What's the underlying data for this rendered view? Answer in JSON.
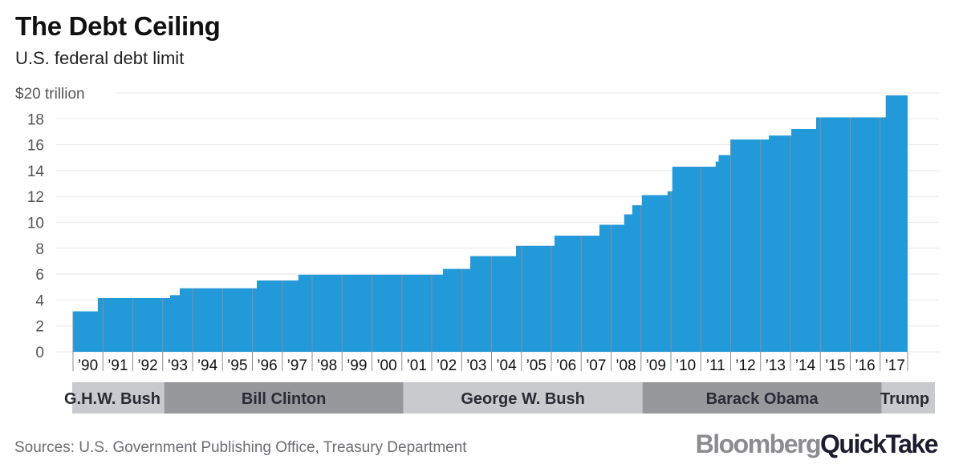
{
  "chart_data": {
    "type": "area",
    "subtype": "step",
    "title": "The Debt Ceiling",
    "subtitle": "U.S. federal debt limit",
    "ylabel": "$ trillion",
    "ylim": [
      0,
      20
    ],
    "y_ticks": [
      0,
      2,
      4,
      6,
      8,
      10,
      12,
      14,
      16,
      18,
      20
    ],
    "y_tick_labels": [
      "0",
      "2",
      "4",
      "6",
      "8",
      "10",
      "12",
      "14",
      "16",
      "18",
      "$20 trillion"
    ],
    "x_range": [
      1990,
      2018
    ],
    "x_ticks": [
      1990,
      1991,
      1992,
      1993,
      1994,
      1995,
      1996,
      1997,
      1998,
      1999,
      2000,
      2001,
      2002,
      2003,
      2004,
      2005,
      2006,
      2007,
      2008,
      2009,
      2010,
      2011,
      2012,
      2013,
      2014,
      2015,
      2016,
      2017
    ],
    "x_tick_labels": [
      "’90",
      "’91",
      "’92",
      "’93",
      "’94",
      "’95",
      "’96",
      "’97",
      "’98",
      "’99",
      "’00",
      "’01",
      "’02",
      "’03",
      "’04",
      "’05",
      "’06",
      "’07",
      "’08",
      "’09",
      "’10",
      "’11",
      "’12",
      "’13",
      "’14",
      "’15",
      "’16",
      "’17"
    ],
    "grid": true,
    "color": "#2299d8",
    "steps": [
      {
        "x": 1990.0,
        "y": 3.123
      },
      {
        "x": 1990.83,
        "y": 4.145
      },
      {
        "x": 1993.25,
        "y": 4.37
      },
      {
        "x": 1993.57,
        "y": 4.9
      },
      {
        "x": 1996.15,
        "y": 5.5
      },
      {
        "x": 1997.54,
        "y": 5.95
      },
      {
        "x": 2002.38,
        "y": 6.4
      },
      {
        "x": 2003.29,
        "y": 7.384
      },
      {
        "x": 2004.82,
        "y": 8.184
      },
      {
        "x": 2006.11,
        "y": 8.965
      },
      {
        "x": 2007.61,
        "y": 9.815
      },
      {
        "x": 2008.44,
        "y": 10.615
      },
      {
        "x": 2008.71,
        "y": 11.315
      },
      {
        "x": 2009.03,
        "y": 12.104
      },
      {
        "x": 2009.89,
        "y": 12.394
      },
      {
        "x": 2010.05,
        "y": 14.294
      },
      {
        "x": 2011.5,
        "y": 14.694
      },
      {
        "x": 2011.6,
        "y": 15.194
      },
      {
        "x": 2011.99,
        "y": 16.394
      },
      {
        "x": 2013.28,
        "y": 16.699
      },
      {
        "x": 2014.03,
        "y": 17.212
      },
      {
        "x": 2014.86,
        "y": 18.113
      },
      {
        "x": 2017.19,
        "y": 19.808
      }
    ],
    "end_x": 2017.92,
    "presidents": [
      {
        "name": "G.H.W. Bush",
        "start": 1990.0,
        "end": 1993.05,
        "shade": "light"
      },
      {
        "name": "Bill Clinton",
        "start": 1993.05,
        "end": 2001.05,
        "shade": "dark"
      },
      {
        "name": "George W. Bush",
        "start": 2001.05,
        "end": 2009.05,
        "shade": "light"
      },
      {
        "name": "Barack Obama",
        "start": 2009.05,
        "end": 2017.05,
        "shade": "dark"
      },
      {
        "name": "Trump",
        "start": 2017.05,
        "end": 2018.95,
        "shade": "light"
      }
    ]
  },
  "header": {
    "title": "The Debt Ceiling",
    "subtitle": "U.S. federal debt limit"
  },
  "footer": {
    "source": "Sources: U.S. Government Publishing Office, Treasury Department",
    "logo_part1": "Bloomberg",
    "logo_part2": "QuickTake"
  },
  "colors": {
    "bar": "#2299d8",
    "grid": "#e8e8ea",
    "divider": "#8a8f96",
    "band_light": "#c9cacd",
    "band_dark": "#97989c"
  }
}
